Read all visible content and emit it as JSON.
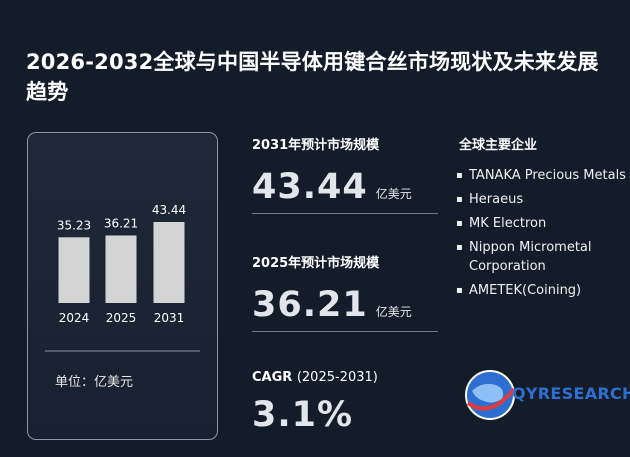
{
  "title": "2026-2032全球与中国半导体用键合丝市场现状及未来发展趋势",
  "chart_data": {
    "type": "bar",
    "categories": [
      "2024",
      "2025",
      "2031"
    ],
    "values": [
      35.23,
      36.21,
      43.44
    ],
    "data_labels": [
      "35.23",
      "36.21",
      "43.44"
    ],
    "unit": "单位：亿美元",
    "bar_color": "#d4d4d4"
  },
  "stats": {
    "market_2031": {
      "label": "2031年预计市场规模",
      "value": "43.44",
      "unit": "亿美元"
    },
    "market_2025": {
      "label": "2025年预计市场规模",
      "value": "36.21",
      "unit": "亿美元"
    },
    "cagr": {
      "label": "CAGR",
      "period": "(2025-2031)",
      "value": "3.1%"
    }
  },
  "companies": {
    "title": "全球主要企业",
    "items": [
      "TANAKA Precious Metals",
      "Heraeus",
      "MK Electron",
      "Nippon Micrometal Corporation",
      "AMETEK(Coining)"
    ]
  },
  "logo": {
    "brand": "QYRESEARCH",
    "colors": {
      "globe": "#2d6fd1",
      "accent": "#e23b3b"
    }
  }
}
